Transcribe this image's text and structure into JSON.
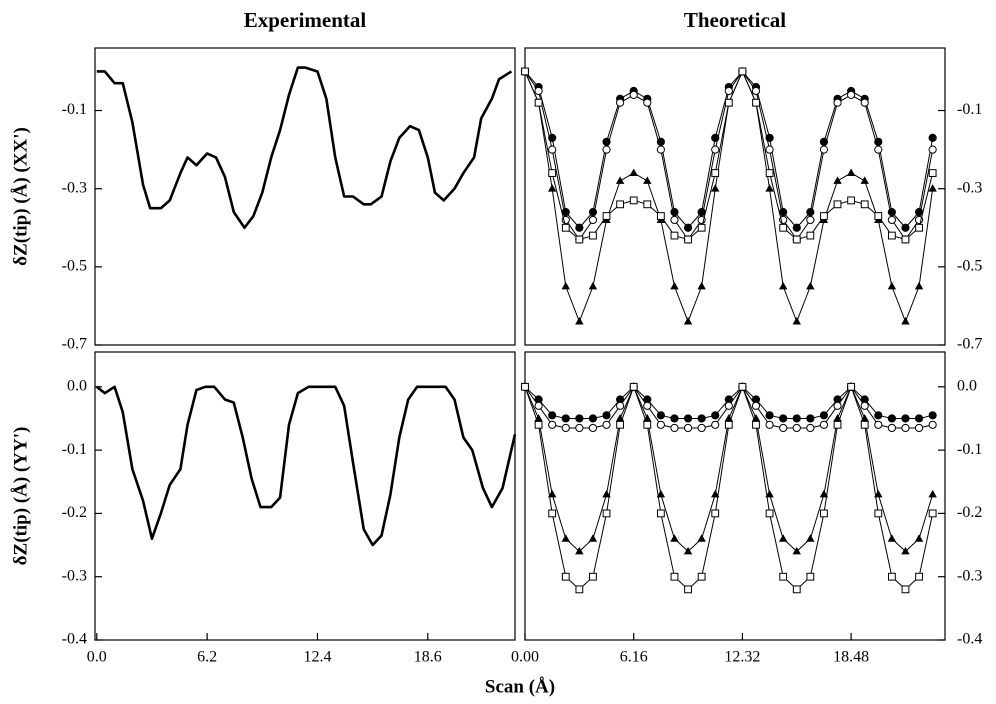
{
  "xlabel": "Scan (Å)",
  "chart_data": [
    {
      "type": "line",
      "title": "Experimental",
      "ylabel": "δZ(tip) (Å)  (XX')",
      "yaxis_side": "left",
      "xlim": [
        -0.1,
        23.5
      ],
      "ylim": [
        -0.7,
        0.06
      ],
      "yticks": [
        -0.1,
        -0.3,
        -0.5,
        -0.7
      ],
      "x": [
        0,
        0.45,
        1.0,
        1.46,
        2.0,
        2.6,
        3.0,
        3.6,
        4.1,
        4.7,
        5.1,
        5.6,
        6.2,
        6.7,
        7.2,
        7.7,
        8.3,
        8.8,
        9.3,
        9.8,
        10.3,
        10.8,
        11.3,
        11.7,
        12.4,
        12.9,
        13.4,
        13.9,
        14.4,
        15.0,
        15.4,
        16.0,
        16.5,
        17.0,
        17.6,
        18.1,
        18.6,
        19.0,
        19.5,
        20.1,
        20.6,
        21.2,
        21.6,
        22.2,
        22.6,
        23.3
      ],
      "series": [
        {
          "color": "#000000",
          "values": [
            0,
            0,
            -0.03,
            -0.03,
            -0.13,
            -0.29,
            -0.35,
            -0.35,
            -0.33,
            -0.26,
            -0.22,
            -0.24,
            -0.21,
            -0.22,
            -0.27,
            -0.36,
            -0.4,
            -0.37,
            -0.31,
            -0.22,
            -0.15,
            -0.06,
            0.01,
            0.01,
            0.0,
            -0.07,
            -0.22,
            -0.32,
            -0.32,
            -0.34,
            -0.34,
            -0.32,
            -0.23,
            -0.17,
            -0.14,
            -0.15,
            -0.22,
            -0.31,
            -0.33,
            -0.3,
            -0.26,
            -0.22,
            -0.12,
            -0.07,
            -0.02,
            0.0
          ]
        }
      ]
    },
    {
      "type": "line",
      "title": "Theoretical",
      "yaxis_side": "right",
      "xlim": [
        0,
        23.8
      ],
      "ylim": [
        -0.7,
        0.06
      ],
      "yticks": [
        -0.1,
        -0.3,
        -0.5,
        -0.7
      ],
      "x": [
        0,
        0.77,
        1.54,
        2.31,
        3.08,
        3.85,
        4.62,
        5.39,
        6.16,
        6.93,
        7.7,
        8.47,
        9.24,
        10.01,
        10.78,
        11.55,
        12.32,
        13.09,
        13.86,
        14.63,
        15.4,
        16.17,
        16.94,
        17.71,
        18.48,
        19.25,
        20.02,
        20.79,
        21.56,
        22.33,
        23.1
      ],
      "series": [
        {
          "color": "#000000",
          "marker": "filled-circle",
          "values": [
            0,
            -0.04,
            -0.17,
            -0.36,
            -0.4,
            -0.36,
            -0.18,
            -0.07,
            -0.05,
            -0.07,
            -0.18,
            -0.36,
            -0.4,
            -0.36,
            -0.17,
            -0.04,
            0,
            -0.04,
            -0.17,
            -0.36,
            -0.4,
            -0.36,
            -0.18,
            -0.07,
            -0.05,
            -0.07,
            -0.18,
            -0.36,
            -0.4,
            -0.36,
            -0.17
          ]
        },
        {
          "color": "#000000",
          "marker": "open-circle",
          "values": [
            0,
            -0.05,
            -0.2,
            -0.38,
            -0.43,
            -0.38,
            -0.2,
            -0.08,
            -0.06,
            -0.08,
            -0.2,
            -0.38,
            -0.43,
            -0.38,
            -0.2,
            -0.05,
            0,
            -0.05,
            -0.2,
            -0.38,
            -0.43,
            -0.38,
            -0.2,
            -0.08,
            -0.06,
            -0.08,
            -0.2,
            -0.38,
            -0.43,
            -0.38,
            -0.2
          ]
        },
        {
          "color": "#000000",
          "marker": "filled-triangle",
          "values": [
            0,
            -0.08,
            -0.3,
            -0.55,
            -0.64,
            -0.55,
            -0.38,
            -0.28,
            -0.26,
            -0.28,
            -0.38,
            -0.55,
            -0.64,
            -0.55,
            -0.3,
            -0.08,
            0,
            -0.08,
            -0.3,
            -0.55,
            -0.64,
            -0.55,
            -0.38,
            -0.28,
            -0.26,
            -0.28,
            -0.38,
            -0.55,
            -0.64,
            -0.55,
            -0.3
          ]
        },
        {
          "color": "#000000",
          "marker": "open-square",
          "values": [
            0,
            -0.08,
            -0.26,
            -0.4,
            -0.43,
            -0.42,
            -0.37,
            -0.34,
            -0.33,
            -0.34,
            -0.37,
            -0.42,
            -0.43,
            -0.4,
            -0.26,
            -0.08,
            0,
            -0.08,
            -0.26,
            -0.4,
            -0.43,
            -0.42,
            -0.37,
            -0.34,
            -0.33,
            -0.34,
            -0.37,
            -0.42,
            -0.43,
            -0.4,
            -0.26
          ]
        }
      ]
    },
    {
      "type": "line",
      "ylabel": "δZ(tip) (Å)  (YY')",
      "yaxis_side": "left",
      "xlim": [
        -0.1,
        23.5
      ],
      "ylim": [
        -0.4,
        0.055
      ],
      "yticks": [
        {
          "value": 0,
          "label": "0.0"
        },
        -0.1,
        -0.2,
        -0.3,
        -0.4
      ],
      "xticks": [
        {
          "value": 0,
          "label": "0.0"
        },
        6.2,
        12.4,
        18.6
      ],
      "x": [
        0,
        0.45,
        1.0,
        1.46,
        2.0,
        2.6,
        3.1,
        3.6,
        4.1,
        4.7,
        5.1,
        5.6,
        6.1,
        6.6,
        7.2,
        7.7,
        8.2,
        8.7,
        9.2,
        9.8,
        10.3,
        10.8,
        11.3,
        11.9,
        12.4,
        13.4,
        13.9,
        14.4,
        15.0,
        15.5,
        16.0,
        16.5,
        17.0,
        17.5,
        18.0,
        18.6,
        19.6,
        20.1,
        20.6,
        21.1,
        21.7,
        22.2,
        22.8,
        23.5
      ],
      "series": [
        {
          "color": "#000000",
          "values": [
            0,
            -0.01,
            0,
            -0.04,
            -0.13,
            -0.18,
            -0.24,
            -0.2,
            -0.155,
            -0.13,
            -0.06,
            -0.005,
            0,
            0,
            -0.02,
            -0.025,
            -0.08,
            -0.145,
            -0.19,
            -0.19,
            -0.175,
            -0.06,
            -0.01,
            0,
            0,
            0,
            -0.03,
            -0.12,
            -0.225,
            -0.25,
            -0.235,
            -0.17,
            -0.08,
            -0.02,
            0,
            0,
            0,
            -0.02,
            -0.08,
            -0.1,
            -0.16,
            -0.19,
            -0.16,
            -0.075
          ]
        }
      ]
    },
    {
      "type": "line",
      "yaxis_side": "right",
      "xlim": [
        0,
        23.8
      ],
      "ylim": [
        -0.4,
        0.055
      ],
      "yticks": [
        {
          "value": 0,
          "label": "0.0"
        },
        -0.1,
        -0.2,
        -0.3,
        -0.4
      ],
      "xticks": [
        {
          "value": 0,
          "label": "0.00"
        },
        6.16,
        12.32,
        18.48
      ],
      "x": [
        0,
        0.77,
        1.54,
        2.31,
        3.08,
        3.85,
        4.62,
        5.39,
        6.16,
        6.93,
        7.7,
        8.47,
        9.24,
        10.01,
        10.78,
        11.55,
        12.32,
        13.09,
        13.86,
        14.63,
        15.4,
        16.17,
        16.94,
        17.71,
        18.48,
        19.25,
        20.02,
        20.79,
        21.56,
        22.33,
        23.1
      ],
      "series": [
        {
          "color": "#000000",
          "marker": "filled-circle",
          "values": [
            0,
            -0.02,
            -0.045,
            -0.05,
            -0.05,
            -0.05,
            -0.045,
            -0.02,
            0,
            -0.02,
            -0.045,
            -0.05,
            -0.05,
            -0.05,
            -0.045,
            -0.02,
            0,
            -0.02,
            -0.045,
            -0.05,
            -0.05,
            -0.05,
            -0.045,
            -0.02,
            0,
            -0.02,
            -0.045,
            -0.05,
            -0.05,
            -0.05,
            -0.045
          ]
        },
        {
          "color": "#000000",
          "marker": "open-circle",
          "values": [
            0,
            -0.03,
            -0.06,
            -0.065,
            -0.065,
            -0.065,
            -0.06,
            -0.03,
            0,
            -0.03,
            -0.06,
            -0.065,
            -0.065,
            -0.065,
            -0.06,
            -0.03,
            0,
            -0.03,
            -0.06,
            -0.065,
            -0.065,
            -0.065,
            -0.06,
            -0.03,
            0,
            -0.03,
            -0.06,
            -0.065,
            -0.065,
            -0.065,
            -0.06
          ]
        },
        {
          "color": "#000000",
          "marker": "filled-triangle",
          "values": [
            0,
            -0.05,
            -0.17,
            -0.24,
            -0.26,
            -0.24,
            -0.17,
            -0.05,
            0,
            -0.05,
            -0.17,
            -0.24,
            -0.26,
            -0.24,
            -0.17,
            -0.05,
            0,
            -0.05,
            -0.17,
            -0.24,
            -0.26,
            -0.24,
            -0.17,
            -0.05,
            0,
            -0.05,
            -0.17,
            -0.24,
            -0.26,
            -0.24,
            -0.17
          ]
        },
        {
          "color": "#000000",
          "marker": "open-square",
          "values": [
            0,
            -0.06,
            -0.2,
            -0.3,
            -0.32,
            -0.3,
            -0.2,
            -0.06,
            0,
            -0.06,
            -0.2,
            -0.3,
            -0.32,
            -0.3,
            -0.2,
            -0.06,
            0,
            -0.06,
            -0.2,
            -0.3,
            -0.32,
            -0.3,
            -0.2,
            -0.06,
            0,
            -0.06,
            -0.2,
            -0.3,
            -0.32,
            -0.3,
            -0.2
          ]
        }
      ]
    }
  ]
}
